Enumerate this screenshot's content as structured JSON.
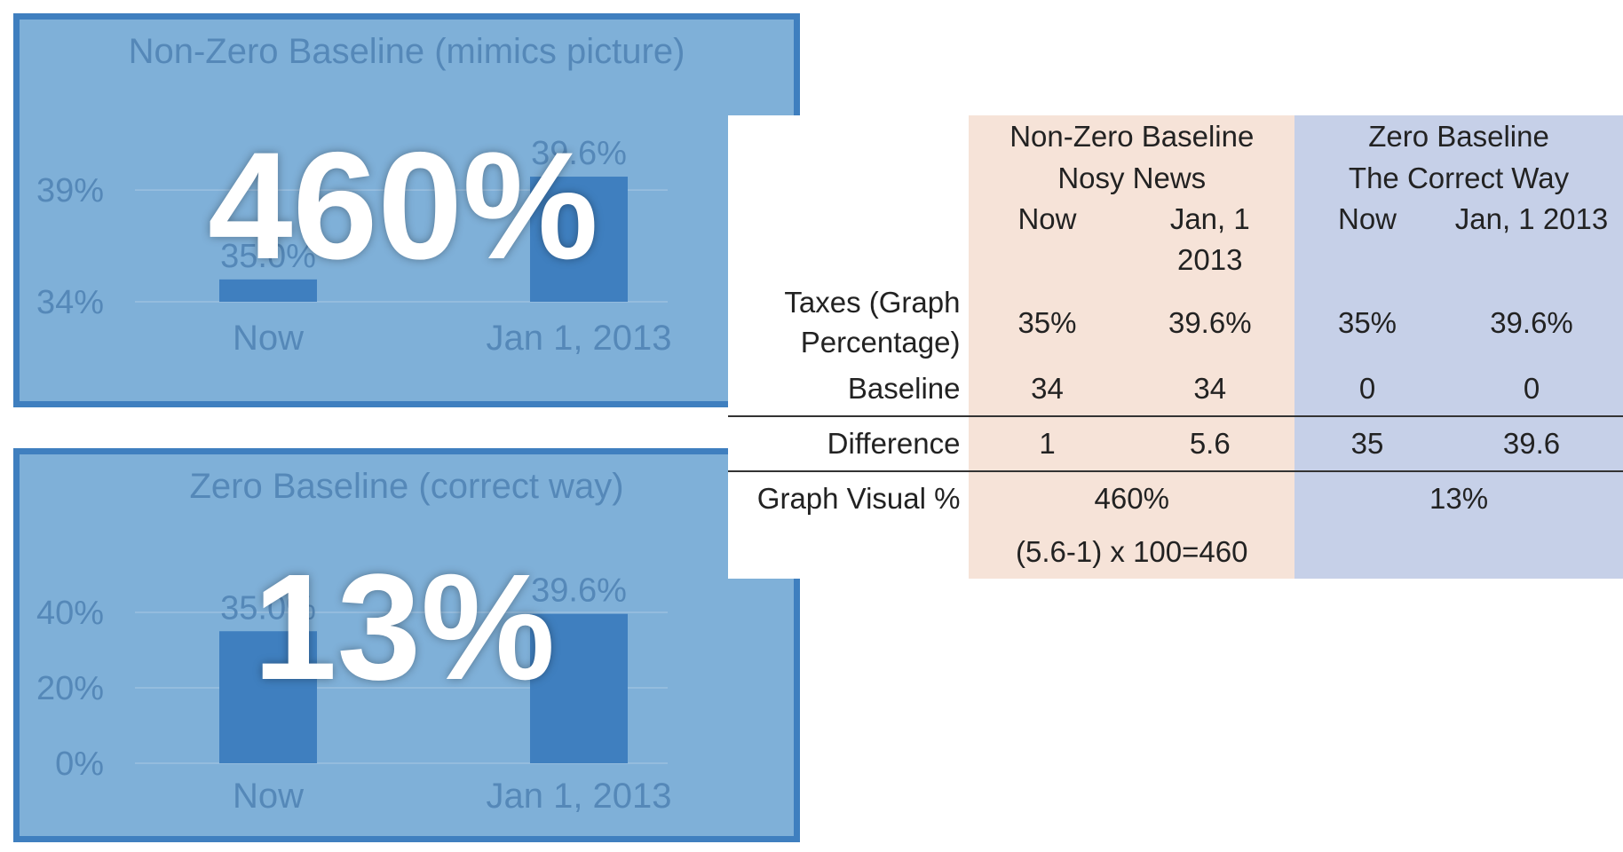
{
  "chart_data": [
    {
      "type": "bar",
      "title": "Non-Zero Baseline (mimics picture)",
      "categories": [
        "Now",
        "Jan 1, 2013"
      ],
      "values": [
        35.0,
        39.6
      ],
      "data_labels": [
        "35.0%",
        "39.6%"
      ],
      "ytick_labels": [
        "39%",
        "34%"
      ],
      "ytick_values": [
        39,
        34
      ],
      "ylim": [
        34,
        40
      ],
      "grid": true,
      "overlay_text": "460%",
      "bar_color": "#3f7fbf"
    },
    {
      "type": "bar",
      "title": "Zero Baseline (correct way)",
      "categories": [
        "Now",
        "Jan 1, 2013"
      ],
      "values": [
        35.0,
        39.6
      ],
      "data_labels": [
        "35.0%",
        "39.6%"
      ],
      "ytick_labels": [
        "40%",
        "20%",
        "0%"
      ],
      "ytick_values": [
        40,
        20,
        0
      ],
      "ylim": [
        0,
        40
      ],
      "grid": true,
      "overlay_text": "13%",
      "bar_color": "#3f7fbf"
    }
  ],
  "table": {
    "groups": [
      {
        "line1": "Non-Zero Baseline",
        "line2": "Nosy News",
        "color": "#f6e3d8"
      },
      {
        "line1": "Zero Baseline",
        "line2": "The Correct Way",
        "color": "#c6d0e8"
      }
    ],
    "subheaders": [
      {
        "line1": "Now",
        "line2": ""
      },
      {
        "line1": "Jan, 1",
        "line2": "2013"
      },
      {
        "line1": "Now",
        "line2": ""
      },
      {
        "line1": "Jan, 1 2013",
        "line2": ""
      }
    ],
    "rows": [
      {
        "label_line1": "Taxes (Graph",
        "label_line2": "Percentage)",
        "values": [
          "35%",
          "39.6%",
          "35%",
          "39.6%"
        ]
      },
      {
        "label": "Baseline",
        "values": [
          "34",
          "34",
          "0",
          "0"
        ]
      },
      {
        "label": "Difference",
        "values": [
          "1",
          "5.6",
          "35",
          "39.6"
        ]
      }
    ],
    "visual": {
      "label": "Graph Visual %",
      "non_zero": "460%",
      "zero": "13%"
    },
    "formula": "(5.6-1) x 100=460"
  }
}
